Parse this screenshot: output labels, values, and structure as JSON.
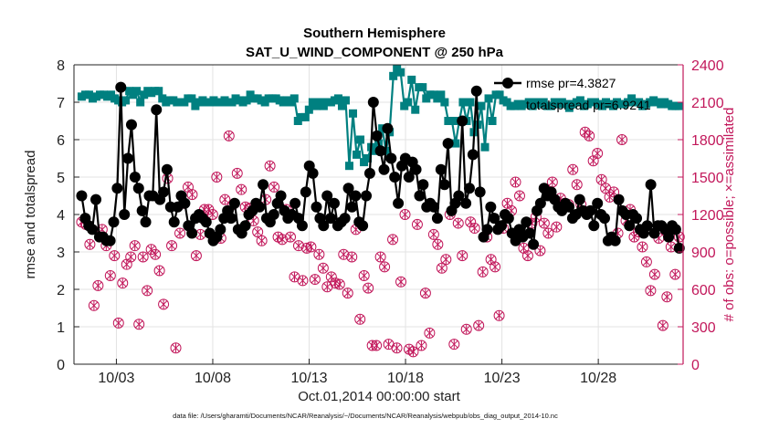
{
  "chart_data": {
    "type": "line",
    "title": "Southern Hemisphere",
    "subtitle": "SAT_U_WIND_COMPONENT @ 250 hPa",
    "xlabel": "Oct.01,2014 00:00:00 start",
    "ylabel": "rmse and totalspread",
    "ylabel_right": "# of obs: o=possible; ×=assimilated",
    "x_unit": "days since Oct.01,2014 00:00",
    "xlim": [
      0.3,
      31.9
    ],
    "ylim": [
      0,
      8
    ],
    "ylim_right": [
      0,
      2400
    ],
    "x_ticks": [
      {
        "x": 2.5,
        "label": "10/03"
      },
      {
        "x": 7.5,
        "label": "10/08"
      },
      {
        "x": 12.5,
        "label": "10/13"
      },
      {
        "x": 17.5,
        "label": "10/18"
      },
      {
        "x": 22.5,
        "label": "10/23"
      },
      {
        "x": 27.5,
        "label": "10/28"
      }
    ],
    "y_ticks": [
      "0",
      "1",
      "2",
      "3",
      "4",
      "5",
      "6",
      "7",
      "8"
    ],
    "y_ticks_right": [
      "0",
      "300",
      "600",
      "900",
      "1200",
      "1500",
      "1800",
      "2100",
      "2400"
    ],
    "grid": true,
    "legend": {
      "position": "top-right",
      "entries": [
        "rmse pr=4.3827",
        "totalspread pr=6.9241"
      ]
    },
    "colors": {
      "rmse": "#000000",
      "totalspread": "#008080",
      "obs": "#c2185b"
    },
    "series": [
      {
        "name": "rmse pr=4.3827",
        "axis": "left",
        "values": [
          4.5,
          3.9,
          3.7,
          3.6,
          4.4,
          3.4,
          3.4,
          3.3,
          3.3,
          3.8,
          4.7,
          7.4,
          4.0,
          5.5,
          6.4,
          5.0,
          4.7,
          4.1,
          3.8,
          4.5,
          4.5,
          6.8,
          4.4,
          4.6,
          5.2,
          4.2,
          3.8,
          4.2,
          4.5,
          4.3,
          3.7,
          3.5,
          3.9,
          4.0,
          3.9,
          3.8,
          3.5,
          3.3,
          3.4,
          3.6,
          3.9,
          4.1,
          3.9,
          4.3,
          3.6,
          3.5,
          3.7,
          4.0,
          4.1,
          4.3,
          4.2,
          4.8,
          3.9,
          3.8,
          4.0,
          4.3,
          4.5,
          4.1,
          3.9,
          4.0,
          4.3,
          3.9,
          3.7,
          4.6,
          5.3,
          5.1,
          4.2,
          3.9,
          3.7,
          4.5,
          3.9,
          4.3,
          3.7,
          3.8,
          3.9,
          4.7,
          4.2,
          4.5,
          3.8,
          3.7,
          4.5,
          5.1,
          7.0,
          6.1,
          5.7,
          5.2,
          6.3,
          5.5,
          5.0,
          4.3,
          5.3,
          5.5,
          5.0,
          5.4,
          5.2,
          4.5,
          4.8,
          4.2,
          4.3,
          4.2,
          3.9,
          5.2,
          4.8,
          5.9,
          4.1,
          4.3,
          4.5,
          6.5,
          4.3,
          4.7,
          5.6,
          7.3,
          4.6,
          3.4,
          3.6,
          4.2,
          3.9,
          3.6,
          3.7,
          4.0,
          3.9,
          3.5,
          3.3,
          3.6,
          3.4,
          3.8,
          3.5,
          3.2,
          4.1,
          4.3,
          4.7,
          4.5,
          4.6,
          4.4,
          4.2,
          4.1,
          4.3,
          4.2,
          3.9,
          4.0,
          4.4,
          4.1,
          4.0,
          4.1,
          3.7,
          4.3,
          4.0,
          3.9,
          3.3,
          3.4,
          3.3,
          4.4,
          4.1,
          4.0,
          3.7,
          4.0,
          3.9,
          3.6,
          3.5,
          3.7,
          4.8,
          3.5,
          3.7,
          3.7,
          3.6,
          3.4,
          3.7,
          3.6,
          3.1
        ]
      },
      {
        "name": "totalspread pr=6.9241",
        "axis": "left",
        "values": [
          7.15,
          7.2,
          7.2,
          7.1,
          7.15,
          7.2,
          7.2,
          7.15,
          7.2,
          7.1,
          7.05,
          7.0,
          7.05,
          7.3,
          7.2,
          7.3,
          7.0,
          7.2,
          7.3,
          7.25,
          7.3,
          7.3,
          7.1,
          7.0,
          7.05,
          7.05,
          7.0,
          7.0,
          7.0,
          7.1,
          7.1,
          6.9,
          7.0,
          7.05,
          7.0,
          7.0,
          7.05,
          7.0,
          7.0,
          7.05,
          7.0,
          7.0,
          7.1,
          7.05,
          7.0,
          7.05,
          7.2,
          7.1,
          7.1,
          7.05,
          7.0,
          7.1,
          7.1,
          7.1,
          7.05,
          7.0,
          7.05,
          7.0,
          7.1,
          6.5,
          6.6,
          6.6,
          6.8,
          7.0,
          6.9,
          7.0,
          6.9,
          7.0,
          7.0,
          7.05,
          7.1,
          6.9,
          7.05,
          5.3,
          6.7,
          5.6,
          6.0,
          5.4,
          5.5,
          5.8,
          5.7,
          5.9,
          6.3,
          5.7,
          6.2,
          7.7,
          7.9,
          7.8,
          6.9,
          7.0,
          7.6,
          6.8,
          7.4,
          7.4,
          7.1,
          7.2,
          7.2,
          7.1,
          7.2,
          7.0,
          6.5,
          6.5,
          5.9,
          6.5,
          7.0,
          6.5,
          7.0,
          6.2,
          6.4,
          6.9,
          5.8,
          7.1,
          6.5,
          7.2,
          7.2,
          7.05,
          7.0,
          6.9,
          6.9,
          6.95,
          6.9,
          6.95,
          7.0,
          6.9,
          7.0,
          6.95,
          7.0,
          6.9,
          6.9,
          7.0,
          6.95,
          7.0,
          6.95,
          6.85,
          6.95,
          7.0,
          7.05,
          6.9,
          6.95,
          7.0,
          7.0,
          6.95,
          6.9,
          7.0,
          6.95,
          6.9,
          7.0,
          6.95,
          6.95,
          7.0,
          7.1,
          7.0,
          7.0,
          6.9,
          6.95,
          7.0,
          7.05,
          7.0,
          6.95,
          7.0,
          6.95,
          6.9,
          6.9,
          6.9
        ]
      },
      {
        "name": "# of obs possible",
        "axis": "right",
        "values": [
          1140,
          1120,
          960,
          470,
          630,
          1080,
          950,
          710,
          870,
          330,
          650,
          800,
          860,
          950,
          320,
          860,
          590,
          920,
          880,
          750,
          480,
          1490,
          950,
          130,
          1050,
          1290,
          1420,
          1360,
          870,
          1040,
          1240,
          1240,
          1200,
          1500,
          1010,
          1320,
          1830,
          1280,
          1530,
          1400,
          1260,
          1250,
          1150,
          1060,
          990,
          1320,
          1590,
          1420,
          1020,
          1000,
          1240,
          1020,
          700,
          950,
          670,
          930,
          940,
          680,
          880,
          770,
          620,
          700,
          650,
          640,
          880,
          570,
          860,
          1080,
          360,
          710,
          610,
          150,
          150,
          860,
          780,
          160,
          1000,
          130,
          660,
          1200,
          120,
          100,
          1120,
          150,
          570,
          250,
          1040,
          960,
          770,
          840,
          1200,
          160,
          1130,
          870,
          280,
          1140,
          1090,
          310,
          740,
          1020,
          840,
          780,
          390,
          1090,
          1290,
          1230,
          1460,
          1350,
          930,
          870,
          1130,
          1180,
          910,
          1130,
          1050,
          1460,
          1100,
          1330,
          1290,
          1280,
          1560,
          1440,
          1280,
          1860,
          1830,
          1630,
          1690,
          1480,
          1410,
          1340,
          1380,
          1050,
          1800,
          1150,
          1240,
          1020,
          1060,
          940,
          820,
          590,
          720,
          1010,
          310,
          540,
          940,
          720,
          1020
        ]
      },
      {
        "name": "# of obs assimilated",
        "axis": "right",
        "values": [
          1140,
          1120,
          960,
          470,
          630,
          1080,
          950,
          710,
          870,
          330,
          650,
          800,
          860,
          950,
          320,
          860,
          590,
          920,
          880,
          750,
          480,
          1490,
          950,
          130,
          1050,
          1290,
          1420,
          1360,
          870,
          1040,
          1240,
          1240,
          1200,
          1500,
          1010,
          1320,
          1830,
          1280,
          1530,
          1400,
          1260,
          1250,
          1150,
          1060,
          990,
          1320,
          1590,
          1420,
          1020,
          1000,
          1240,
          1020,
          700,
          950,
          670,
          930,
          940,
          680,
          880,
          770,
          620,
          700,
          650,
          640,
          880,
          570,
          860,
          1080,
          360,
          710,
          610,
          150,
          150,
          860,
          780,
          160,
          1000,
          130,
          660,
          1200,
          120,
          100,
          1120,
          150,
          570,
          250,
          1040,
          960,
          770,
          840,
          1200,
          160,
          1130,
          870,
          280,
          1140,
          1090,
          310,
          740,
          1020,
          840,
          780,
          390,
          1090,
          1290,
          1230,
          1460,
          1350,
          930,
          870,
          1130,
          1180,
          910,
          1130,
          1050,
          1460,
          1100,
          1330,
          1290,
          1280,
          1560,
          1440,
          1280,
          1860,
          1830,
          1630,
          1690,
          1480,
          1410,
          1340,
          1380,
          1050,
          1800,
          1150,
          1240,
          1020,
          1060,
          940,
          820,
          590,
          720,
          1010,
          310,
          540,
          940,
          720,
          1020
        ]
      }
    ],
    "footnote": "data file: /Users/gharamti/Documents/NCAR/Reanalysis/~/Documents/NCAR/Reanalysis/webpub/obs_diag_output_2014-10.nc"
  }
}
